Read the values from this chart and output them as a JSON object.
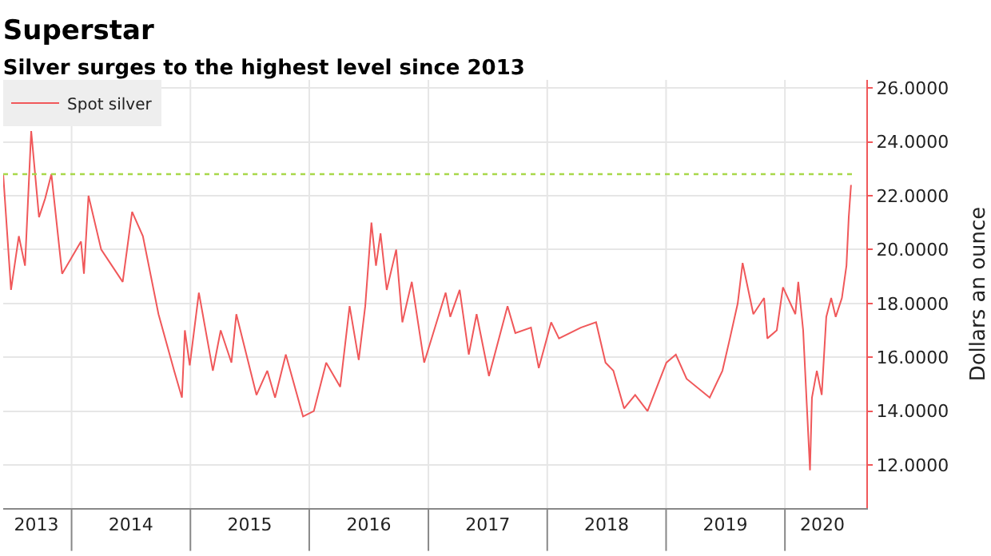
{
  "chart_data": {
    "type": "line",
    "title": "Superstar",
    "subtitle": "Silver surges to the highest level since 2013",
    "ylabel": "Dollars an ounce",
    "x": [
      "2013-06-05",
      "2013-06-29",
      "2013-07-23",
      "2013-08-11",
      "2013-08-30",
      "2013-09-23",
      "2013-10-12",
      "2013-10-31",
      "2013-12-03",
      "2014-01-30",
      "2014-02-08",
      "2014-02-22",
      "2014-04-02",
      "2014-06-07",
      "2014-07-06",
      "2014-08-08",
      "2014-09-25",
      "2014-11-12",
      "2014-12-06",
      "2014-12-15",
      "2014-12-30",
      "2015-01-27",
      "2015-03-11",
      "2015-04-04",
      "2015-05-07",
      "2015-05-22",
      "2015-07-23",
      "2015-08-25",
      "2015-09-18",
      "2015-10-21",
      "2015-12-13",
      "2016-01-15",
      "2016-02-22",
      "2016-04-05",
      "2016-05-04",
      "2016-06-01",
      "2016-06-21",
      "2016-07-10",
      "2016-07-24",
      "2016-08-07",
      "2016-08-26",
      "2016-09-24",
      "2016-10-13",
      "2016-11-11",
      "2016-12-19",
      "2017-02-23",
      "2017-03-09",
      "2017-04-07",
      "2017-05-05",
      "2017-05-29",
      "2017-07-06",
      "2017-09-01",
      "2017-09-25",
      "2017-11-12",
      "2017-12-06",
      "2018-01-13",
      "2018-02-06",
      "2018-04-14",
      "2018-05-31",
      "2018-06-29",
      "2018-07-23",
      "2018-08-25",
      "2018-09-28",
      "2018-11-05",
      "2019-01-02",
      "2019-01-31",
      "2019-03-05",
      "2019-05-15",
      "2019-06-23",
      "2019-07-16",
      "2019-08-09",
      "2019-08-24",
      "2019-09-26",
      "2019-10-29",
      "2019-11-08",
      "2019-12-07",
      "2019-12-26",
      "2020-02-02",
      "2020-02-11",
      "2020-02-26",
      "2020-03-18",
      "2020-03-24",
      "2020-04-08",
      "2020-04-23",
      "2020-05-07",
      "2020-05-22",
      "2020-06-05",
      "2020-06-24",
      "2020-07-08",
      "2020-07-15",
      "2020-07-22"
    ],
    "series": [
      {
        "name": "Spot silver",
        "color": "#f0585a",
        "values": [
          22.8,
          18.5,
          20.5,
          19.4,
          24.4,
          21.2,
          21.9,
          22.8,
          19.1,
          20.3,
          19.1,
          22.0,
          20.0,
          18.8,
          21.4,
          20.5,
          17.6,
          15.5,
          14.5,
          17.0,
          15.7,
          18.4,
          15.5,
          17.0,
          15.8,
          17.6,
          14.6,
          15.5,
          14.5,
          16.1,
          13.8,
          14.0,
          15.8,
          14.9,
          17.9,
          15.9,
          17.9,
          21.0,
          19.4,
          20.6,
          18.5,
          20.0,
          17.3,
          18.8,
          15.8,
          18.4,
          17.5,
          18.5,
          16.1,
          17.6,
          15.3,
          17.9,
          16.9,
          17.1,
          15.6,
          17.3,
          16.7,
          17.1,
          17.3,
          15.8,
          15.5,
          14.1,
          14.6,
          14.0,
          15.8,
          16.1,
          15.2,
          14.5,
          15.5,
          16.7,
          18.0,
          19.5,
          17.6,
          18.2,
          16.7,
          17.0,
          18.6,
          17.6,
          18.8,
          17.0,
          11.8,
          14.5,
          15.5,
          14.6,
          17.5,
          18.2,
          17.5,
          18.2,
          19.4,
          21.2,
          22.4
        ]
      }
    ],
    "xlim": [
      "2013-06-05",
      "2020-09-07"
    ],
    "xticks": [
      {
        "value": "2013-09-15",
        "label": "2013"
      },
      {
        "value": "2014-01-01",
        "label": null
      },
      {
        "value": "2014-07-02",
        "label": "2014"
      },
      {
        "value": "2015-01-01",
        "label": null
      },
      {
        "value": "2015-07-02",
        "label": "2015"
      },
      {
        "value": "2016-01-01",
        "label": null
      },
      {
        "value": "2016-07-02",
        "label": "2016"
      },
      {
        "value": "2017-01-01",
        "label": null
      },
      {
        "value": "2017-07-02",
        "label": "2017"
      },
      {
        "value": "2018-01-01",
        "label": null
      },
      {
        "value": "2018-07-02",
        "label": "2018"
      },
      {
        "value": "2019-01-01",
        "label": null
      },
      {
        "value": "2019-07-02",
        "label": "2019"
      },
      {
        "value": "2020-01-01",
        "label": null
      },
      {
        "value": "2020-04-25",
        "label": "2020"
      }
    ],
    "ylim": [
      10.4,
      26.3
    ],
    "yticks": [
      {
        "value": 12,
        "label": "12.0000"
      },
      {
        "value": 14,
        "label": "14.0000"
      },
      {
        "value": 16,
        "label": "16.0000"
      },
      {
        "value": 18,
        "label": "18.0000"
      },
      {
        "value": 20,
        "label": "20.0000"
      },
      {
        "value": 22,
        "label": "22.0000"
      },
      {
        "value": 24,
        "label": "24.0000"
      },
      {
        "value": 26,
        "label": "26.0000"
      }
    ],
    "ref_lines": [
      {
        "axis": "y",
        "value": 22.8,
        "color": "#a8d84a",
        "line_style": "dotted"
      }
    ],
    "grid": true,
    "legend": "top left",
    "marker": "none",
    "line_style": "solid"
  }
}
